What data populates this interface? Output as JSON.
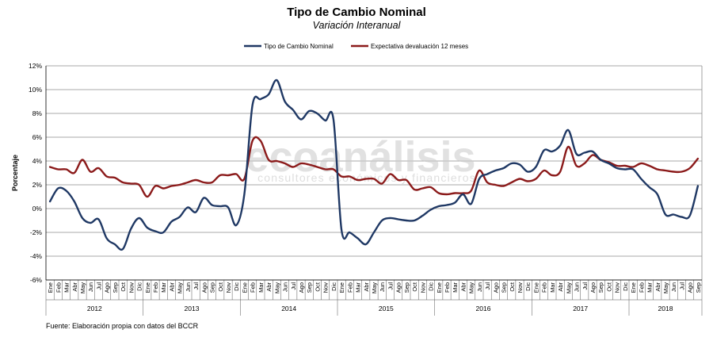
{
  "chart_data": {
    "type": "line",
    "title": "Tipo de Cambio Nominal",
    "subtitle": "Variación Interanual",
    "ylabel": "Porcentaje",
    "xlabel": "",
    "ylim": [
      -6,
      12
    ],
    "yticks": [
      "-6%",
      "-4%",
      "-2%",
      "0%",
      "2%",
      "4%",
      "6%",
      "8%",
      "10%",
      "12%"
    ],
    "ytick_values": [
      -6,
      -4,
      -2,
      0,
      2,
      4,
      6,
      8,
      10,
      12
    ],
    "grid": true,
    "legend_position": "top-center",
    "months": [
      "Ene",
      "Feb",
      "Mar",
      "Abr",
      "May",
      "Jun",
      "Jul",
      "Ago",
      "Sep",
      "Oct",
      "Nov",
      "Dic"
    ],
    "years": [
      "2012",
      "2013",
      "2014",
      "2015",
      "2016",
      "2017",
      "2018"
    ],
    "last_year_months": 9,
    "series": [
      {
        "name": "Tipo de Cambio Nominal",
        "color": "#1f3864",
        "values": [
          0.6,
          1.7,
          1.5,
          0.6,
          -0.8,
          -1.2,
          -0.9,
          -2.5,
          -3.0,
          -3.4,
          -1.7,
          -0.8,
          -1.6,
          -1.9,
          -2.0,
          -1.1,
          -0.7,
          0.1,
          -0.3,
          0.9,
          0.3,
          0.2,
          0.1,
          -1.4,
          1.2,
          8.7,
          9.2,
          9.6,
          10.8,
          9.0,
          8.3,
          7.5,
          8.2,
          8.0,
          7.4,
          7.5,
          -1.8,
          -2.0,
          -2.5,
          -3.0,
          -2.0,
          -1.0,
          -0.8,
          -0.9,
          -1.0,
          -1.0,
          -0.6,
          -0.1,
          0.2,
          0.3,
          0.5,
          1.2,
          0.4,
          2.5,
          2.9,
          3.2,
          3.4,
          3.8,
          3.7,
          3.1,
          3.5,
          4.9,
          4.8,
          5.3,
          6.6,
          4.6,
          4.7,
          4.8,
          4.1,
          3.8,
          3.4,
          3.3,
          3.3,
          2.5,
          1.8,
          1.2,
          -0.5,
          -0.5,
          -0.7,
          -0.6,
          1.9
        ]
      },
      {
        "name": "Expectativa devaluación 12 meses",
        "color": "#8b1a1a",
        "values": [
          3.5,
          3.3,
          3.3,
          3.0,
          4.1,
          3.1,
          3.4,
          2.7,
          2.6,
          2.2,
          2.1,
          2.0,
          1.0,
          1.9,
          1.7,
          1.9,
          2.0,
          2.2,
          2.4,
          2.2,
          2.2,
          2.8,
          2.8,
          2.9,
          2.5,
          5.7,
          5.7,
          4.1,
          4.0,
          3.8,
          3.5,
          3.8,
          3.7,
          3.5,
          3.3,
          3.3,
          2.7,
          2.7,
          2.4,
          2.5,
          2.5,
          2.1,
          2.9,
          2.4,
          2.4,
          1.6,
          1.7,
          1.8,
          1.3,
          1.2,
          1.3,
          1.3,
          1.5,
          3.2,
          2.2,
          2.0,
          1.9,
          2.2,
          2.5,
          2.3,
          2.5,
          3.2,
          2.8,
          3.1,
          5.2,
          3.6,
          3.8,
          4.5,
          4.1,
          3.9,
          3.6,
          3.6,
          3.5,
          3.8,
          3.6,
          3.3,
          3.2,
          3.1,
          3.1,
          3.4,
          4.2
        ]
      }
    ]
  },
  "watermark": {
    "brand": "ecoanálisis",
    "tagline": "consultores económicos y financieros"
  },
  "source_note": "Fuente: Elaboración propia con datos del BCCR"
}
